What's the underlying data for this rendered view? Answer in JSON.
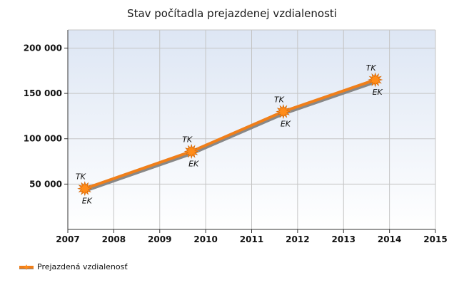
{
  "chart_data": {
    "type": "line",
    "title": "Stav počítadla prejazdenej vzdialenosti",
    "xlabel": "",
    "ylabel": "",
    "xlim": [
      2007,
      2015
    ],
    "ylim": [
      0,
      220000
    ],
    "x_ticks": [
      2007,
      2008,
      2009,
      2010,
      2011,
      2012,
      2013,
      2014,
      2015
    ],
    "y_ticks": [
      50000,
      100000,
      150000,
      200000
    ],
    "y_tick_labels": [
      "50 000",
      "100 000",
      "150 000",
      "200 000"
    ],
    "grid": true,
    "legend_position": "bottom-left",
    "series": [
      {
        "name": "Prejazdená vzdialenosť",
        "color": "#f07f1a",
        "shadow_color": "#888888",
        "points": [
          {
            "x": 2007.37,
            "y": 45000,
            "label_above": "TK",
            "label_below": "EK"
          },
          {
            "x": 2009.69,
            "y": 86000,
            "label_above": "TK",
            "label_below": "EK"
          },
          {
            "x": 2011.69,
            "y": 130000,
            "label_above": "TK",
            "label_below": "EK"
          },
          {
            "x": 2013.69,
            "y": 165000,
            "label_above": "TK",
            "label_below": "EK"
          }
        ]
      }
    ]
  }
}
